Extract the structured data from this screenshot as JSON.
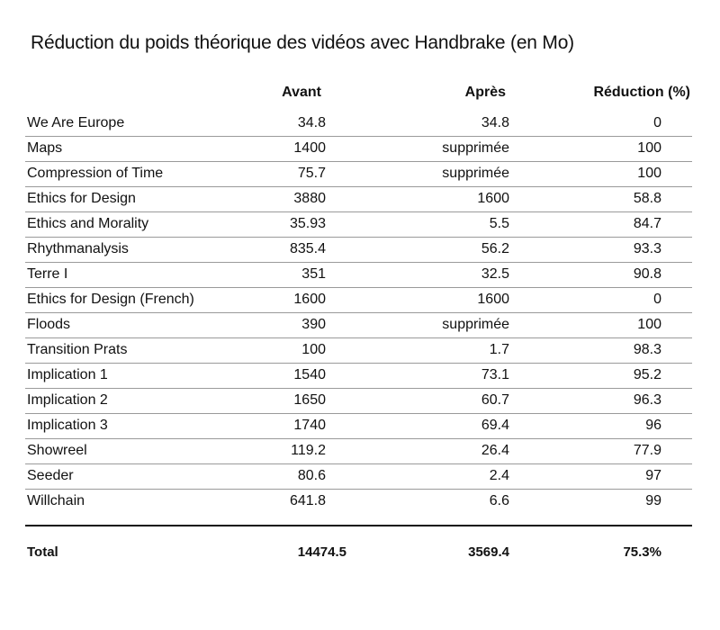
{
  "title": "Réduction du poids théorique des vidéos avec Handbrake (en Mo)",
  "columns": {
    "avant": "Avant",
    "apres": "Après",
    "reduction": "Réduction (%)"
  },
  "rows": [
    {
      "name": "We Are Europe",
      "avant": "34.8",
      "apres": "34.8",
      "reduction": "0"
    },
    {
      "name": "Maps",
      "avant": "1400",
      "apres": "supprimée",
      "reduction": "100"
    },
    {
      "name": "Compression of Time",
      "avant": "75.7",
      "apres": "supprimée",
      "reduction": "100"
    },
    {
      "name": "Ethics for Design",
      "avant": "3880",
      "apres": "1600",
      "reduction": "58.8"
    },
    {
      "name": "Ethics and Morality",
      "avant": "35.93",
      "apres": "5.5",
      "reduction": "84.7"
    },
    {
      "name": "Rhythmanalysis",
      "avant": "835.4",
      "apres": "56.2",
      "reduction": "93.3"
    },
    {
      "name": "Terre I",
      "avant": "351",
      "apres": "32.5",
      "reduction": "90.8"
    },
    {
      "name": "Ethics for Design (French)",
      "avant": "1600",
      "apres": "1600",
      "reduction": "0"
    },
    {
      "name": "Floods",
      "avant": "390",
      "apres": "supprimée",
      "reduction": "100"
    },
    {
      "name": "Transition Prats",
      "avant": "100",
      "apres": "1.7",
      "reduction": "98.3"
    },
    {
      "name": "Implication 1",
      "avant": "1540",
      "apres": "73.1",
      "reduction": "95.2"
    },
    {
      "name": "Implication 2",
      "avant": "1650",
      "apres": "60.7",
      "reduction": "96.3"
    },
    {
      "name": "Implication 3",
      "avant": "1740",
      "apres": "69.4",
      "reduction": "96"
    },
    {
      "name": "Showreel",
      "avant": "119.2",
      "apres": "26.4",
      "reduction": "77.9"
    },
    {
      "name": "Seeder",
      "avant": "80.6",
      "apres": "2.4",
      "reduction": "97"
    },
    {
      "name": "Willchain",
      "avant": "641.8",
      "apres": "6.6",
      "reduction": "99"
    }
  ],
  "total": {
    "label": "Total",
    "avant": "14474.5",
    "apres": "3569.4",
    "reduction": "75.3%"
  }
}
